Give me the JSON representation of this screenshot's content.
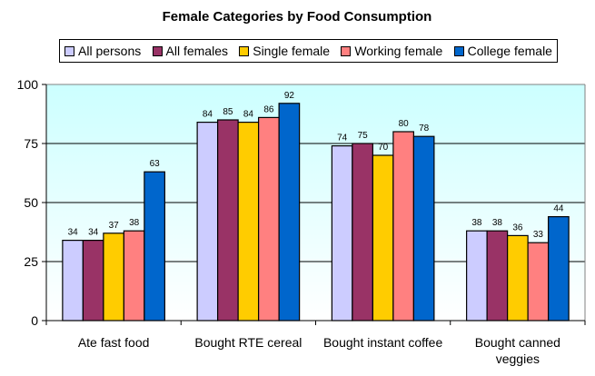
{
  "chart_data": {
    "type": "bar",
    "title": "Female Categories by Food Consumption",
    "xlabel": "",
    "ylabel": "",
    "ylim": [
      0,
      100
    ],
    "yticks": [
      0,
      25,
      50,
      75,
      100
    ],
    "grid": true,
    "legend_position": "top",
    "categories": [
      "Ate fast food",
      "Bought RTE cereal",
      "Bought instant coffee",
      "Bought canned veggies"
    ],
    "category_lines": [
      [
        "Ate fast food"
      ],
      [
        "Bought RTE cereal"
      ],
      [
        "Bought instant coffee"
      ],
      [
        "Bought canned",
        "veggies"
      ]
    ],
    "series": [
      {
        "name": "All persons",
        "color": "#ccccff",
        "values": [
          34,
          84,
          74,
          38
        ]
      },
      {
        "name": "All females",
        "color": "#993366",
        "values": [
          34,
          85,
          75,
          38
        ]
      },
      {
        "name": "Single female",
        "color": "#ffcc00",
        "values": [
          37,
          84,
          70,
          36
        ]
      },
      {
        "name": "Working female",
        "color": "#ff8080",
        "values": [
          38,
          86,
          80,
          33
        ]
      },
      {
        "name": "College female",
        "color": "#0066cc",
        "values": [
          63,
          92,
          78,
          44
        ]
      }
    ],
    "plot_background": {
      "top": "#ccffff",
      "bottom": "#ffffff"
    }
  }
}
